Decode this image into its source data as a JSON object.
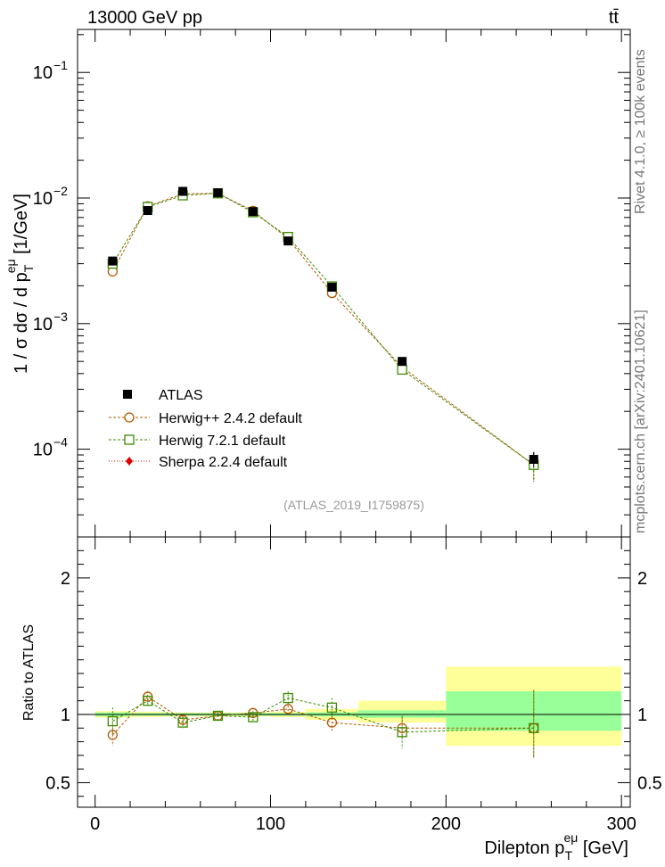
{
  "header": {
    "energy_label": "13000 GeV pp",
    "process_label": "tt̄"
  },
  "side_text": {
    "rivet": "Rivet 4.1.0, ≥ 100k events",
    "source": "mcplots.cern.ch [arXiv:2401.10621]"
  },
  "watermark": "(ATLAS_2019_I1759875)",
  "colors": {
    "atlas": "#000000",
    "herwigpp": "#b35900",
    "herwig7": "#3c8c00",
    "sherpa": "#dd0000",
    "band_stat": "#99ff99",
    "band_total": "#ffff99"
  },
  "chart_data": [
    {
      "type": "scatter",
      "title": "",
      "xlabel": "Dilepton p_T^{eμ} [GeV]",
      "ylabel": "1 / σ dσ / d p_T^{eμ} [1/GeV]",
      "ylabel_parts": {
        "lead": "1 / σ  dσ / d p",
        "sub": "T",
        "sup": "eμ",
        "tail": " [1/GeV]"
      },
      "yscale": "log",
      "xlim": [
        -10,
        305
      ],
      "ylim": [
        2e-05,
        0.22
      ],
      "y_ticks": [
        {
          "v": 0.1,
          "label": "10",
          "exp": "−1"
        },
        {
          "v": 0.01,
          "label": "10",
          "exp": "−2"
        },
        {
          "v": 0.001,
          "label": "10",
          "exp": "−3"
        },
        {
          "v": 0.0001,
          "label": "10",
          "exp": "−4"
        }
      ],
      "x": [
        10,
        30,
        50,
        70,
        90,
        110,
        135,
        175,
        250
      ],
      "bin_edges": [
        0,
        20,
        40,
        60,
        80,
        100,
        120,
        150,
        200,
        300
      ],
      "series": [
        {
          "name": "ATLAS",
          "marker": "filled-square",
          "values": [
            0.00315,
            0.00795,
            0.0113,
            0.011,
            0.0078,
            0.00455,
            0.00195,
            0.0005,
            8.3e-05
          ],
          "errors": [
            0.0001,
            0.0002,
            0.0003,
            0.0003,
            0.0002,
            0.00015,
            8e-05,
            3e-05,
            1.2e-05
          ]
        },
        {
          "name": "Herwig++ 2.4.2 default",
          "marker": "open-circle",
          "values": [
            0.0026,
            0.0086,
            0.0108,
            0.0109,
            0.0079,
            0.00475,
            0.00175,
            0.00045,
            7.5e-05
          ],
          "errors": [
            0.00012,
            0.00035,
            0.0004,
            0.00035,
            0.00028,
            0.00022,
            0.0001,
            4e-05,
            1.8e-05
          ]
        },
        {
          "name": "Herwig 7.2.1 default",
          "marker": "open-square",
          "values": [
            0.003,
            0.0085,
            0.0105,
            0.0109,
            0.0077,
            0.0049,
            0.00198,
            0.00043,
            7.5e-05
          ],
          "errors": [
            0.00012,
            0.00035,
            0.0004,
            0.00035,
            0.00028,
            0.00022,
            0.0001,
            4e-05,
            2e-05
          ]
        },
        {
          "name": "Sherpa 2.2.4 default",
          "marker": "filled-diamond",
          "values": [],
          "errors": []
        }
      ],
      "legend": [
        "ATLAS",
        "Herwig++ 2.4.2 default",
        "Herwig 7.2.1 default",
        "Sherpa 2.2.4 default"
      ],
      "legend_position": "bottom-left"
    },
    {
      "type": "scatter",
      "title": "",
      "xlabel": "Dilepton p_T^{eμ} [GeV]",
      "ylabel": "Ratio to ATLAS",
      "yscale": "linear",
      "xlim": [
        -10,
        305
      ],
      "ylim": [
        0.32,
        2.3
      ],
      "x_ticks": [
        0,
        100,
        200,
        300
      ],
      "y_ticks": [
        0.5,
        1,
        2
      ],
      "y_tick_labels": [
        "0.5",
        "1",
        "2"
      ],
      "x": [
        10,
        30,
        50,
        70,
        90,
        110,
        135,
        175,
        250
      ],
      "bands": {
        "bin_edges": [
          0,
          20,
          40,
          60,
          80,
          100,
          120,
          150,
          200,
          300
        ],
        "stat_lo": [
          0.985,
          0.99,
          0.99,
          0.99,
          0.99,
          0.99,
          0.985,
          0.975,
          0.88
        ],
        "stat_hi": [
          1.015,
          1.01,
          1.01,
          1.01,
          1.01,
          1.01,
          1.015,
          1.03,
          1.17
        ],
        "total_lo": [
          0.975,
          0.98,
          0.985,
          0.985,
          0.985,
          0.98,
          0.96,
          0.94,
          0.77
        ],
        "total_hi": [
          1.025,
          1.02,
          1.015,
          1.015,
          1.015,
          1.02,
          1.04,
          1.1,
          1.35
        ]
      },
      "series": [
        {
          "name": "Herwig++ 2.4.2 default",
          "values": [
            0.85,
            1.13,
            0.96,
            0.99,
            1.01,
            1.04,
            0.94,
            0.9,
            0.9
          ],
          "err_lo": [
            0.08,
            0.04,
            0.03,
            0.03,
            0.04,
            0.05,
            0.06,
            0.08,
            0.22
          ],
          "err_hi": [
            0.08,
            0.04,
            0.03,
            0.03,
            0.04,
            0.05,
            0.06,
            0.08,
            0.27
          ]
        },
        {
          "name": "Herwig 7.2.1 default",
          "values": [
            0.95,
            1.1,
            0.94,
            0.99,
            0.98,
            1.12,
            1.05,
            0.87,
            0.9
          ],
          "err_lo": [
            0.1,
            0.04,
            0.04,
            0.03,
            0.04,
            0.05,
            0.07,
            0.12,
            0.22
          ],
          "err_hi": [
            0.1,
            0.04,
            0.04,
            0.03,
            0.04,
            0.05,
            0.07,
            0.12,
            0.28
          ]
        }
      ]
    }
  ]
}
